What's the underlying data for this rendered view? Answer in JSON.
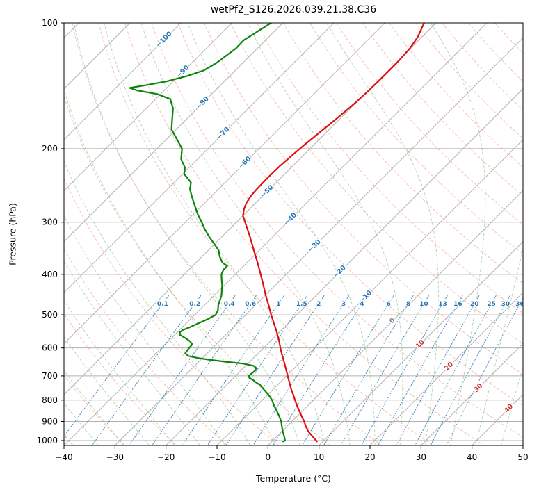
{
  "chart_data": {
    "type": "line",
    "variant": "skew-t-log-p",
    "title": "wetPf2_S126.2026.039.21.38.C36",
    "xlabel": "Temperature (°C)",
    "ylabel": "Pressure (hPa)",
    "xlim": [
      -40,
      50
    ],
    "x_ticks": [
      -40,
      -30,
      -20,
      -10,
      0,
      10,
      20,
      30,
      40,
      50
    ],
    "p_ticks": [
      100,
      200,
      300,
      400,
      500,
      600,
      700,
      800,
      900,
      1000
    ],
    "pressure_range_hPa": [
      100,
      1027
    ],
    "y_scale": "log",
    "skew_degrees": 45,
    "grid": true,
    "isotherms_C": {
      "min": -120,
      "max": 50,
      "step": 10
    },
    "isotherm_labels_C": [
      -100,
      -90,
      -80,
      -70,
      -60,
      -50,
      -40,
      -30,
      -20,
      -10,
      0,
      10,
      20,
      30,
      40
    ],
    "dry_adiabats_C": {
      "min": -50,
      "max": 190,
      "step": 10
    },
    "moist_adiabats_C": {
      "min": -40,
      "max": 70,
      "step": 5
    },
    "mixing_ratio_g_kg": [
      0.1,
      0.2,
      0.4,
      0.6,
      1,
      1.5,
      2,
      3,
      4,
      6,
      8,
      10,
      13,
      16,
      20,
      25,
      30,
      36
    ],
    "mixing_ratio_label_pressure_hPa": 470,
    "series": [
      {
        "name": "temperature",
        "color": "#e01010",
        "pressure_hPa": [
          1005,
          1000,
          975,
          950,
          925,
          900,
          875,
          850,
          825,
          800,
          775,
          750,
          725,
          700,
          675,
          650,
          625,
          600,
          575,
          550,
          525,
          500,
          475,
          450,
          425,
          400,
          375,
          350,
          325,
          300,
          290,
          280,
          270,
          260,
          250,
          235,
          220,
          200,
          185,
          170,
          155,
          145,
          135,
          125,
          115,
          108,
          100
        ],
        "temp_C": [
          8.8,
          8.5,
          6.8,
          5.1,
          3.7,
          2.4,
          0.9,
          -0.6,
          -2.1,
          -3.6,
          -5.1,
          -6.7,
          -8.2,
          -9.8,
          -11.4,
          -13.1,
          -14.9,
          -16.7,
          -18.5,
          -20.5,
          -22.7,
          -25.0,
          -27.3,
          -29.8,
          -32.3,
          -35.0,
          -37.9,
          -41.1,
          -44.5,
          -48.3,
          -49.9,
          -51.0,
          -51.8,
          -52.3,
          -52.5,
          -52.6,
          -52.5,
          -52.0,
          -51.4,
          -50.7,
          -50.1,
          -49.9,
          -49.8,
          -49.8,
          -50.1,
          -50.8,
          -52.3
        ]
      },
      {
        "name": "dewpoint",
        "color": "#0a850a",
        "pressure_hPa": [
          1005,
          1000,
          975,
          950,
          925,
          900,
          875,
          850,
          825,
          800,
          775,
          750,
          735,
          725,
          715,
          708,
          700,
          690,
          680,
          670,
          662,
          654,
          647,
          640,
          634,
          627,
          618,
          608,
          598,
          588,
          578,
          568,
          558,
          550,
          543,
          534,
          524,
          512,
          500,
          488,
          475,
          462,
          450,
          438,
          425,
          412,
          400,
          390,
          382,
          375,
          362,
          350,
          337,
          325,
          312,
          300,
          288,
          275,
          262,
          250,
          241,
          230,
          222,
          212,
          200,
          190,
          180,
          170,
          160,
          152,
          148,
          145,
          143,
          141,
          138,
          134,
          130,
          125,
          120,
          115,
          110,
          105,
          100
        ],
        "temp_C": [
          2.2,
          2.4,
          1.3,
          0.1,
          -1.0,
          -2.1,
          -3.5,
          -5.0,
          -6.6,
          -8.1,
          -10.0,
          -12.2,
          -13.5,
          -14.8,
          -15.9,
          -16.9,
          -17.4,
          -17.3,
          -17.2,
          -17.5,
          -18.5,
          -21.0,
          -25.0,
          -28.5,
          -31.0,
          -33.2,
          -34.3,
          -34.5,
          -34.6,
          -34.7,
          -35.8,
          -37.3,
          -39.0,
          -39.5,
          -39.3,
          -38.4,
          -37.6,
          -36.6,
          -35.9,
          -36.3,
          -37.2,
          -37.9,
          -38.5,
          -39.4,
          -40.4,
          -41.6,
          -42.7,
          -43.2,
          -43.2,
          -44.8,
          -46.6,
          -48.0,
          -50.3,
          -52.5,
          -54.8,
          -56.8,
          -59.0,
          -61.2,
          -63.5,
          -65.6,
          -66.7,
          -69.7,
          -70.8,
          -73.2,
          -75.1,
          -77.9,
          -80.9,
          -82.8,
          -84.8,
          -87.2,
          -90.7,
          -95.4,
          -97.3,
          -94.7,
          -91.3,
          -88.4,
          -86.2,
          -85.2,
          -84.7,
          -84.2,
          -84.3,
          -83.3,
          -82.3
        ]
      }
    ],
    "colors": {
      "temperature": "#e01010",
      "dewpoint": "#0a850a",
      "isotherm": "#b0b0b0",
      "pressure_grid": "#b0b0b0",
      "dry_adiabat": "#f08878",
      "moist_adiabat": "#74ad74",
      "mixing_ratio": "#2f7fb8",
      "mixing_ratio_label": "#2878b8",
      "isotherm_label_negative": "#2878b8",
      "isotherm_label_zero": "#808080",
      "isotherm_label_positive": "#cc3333",
      "frame": "#000000"
    }
  }
}
